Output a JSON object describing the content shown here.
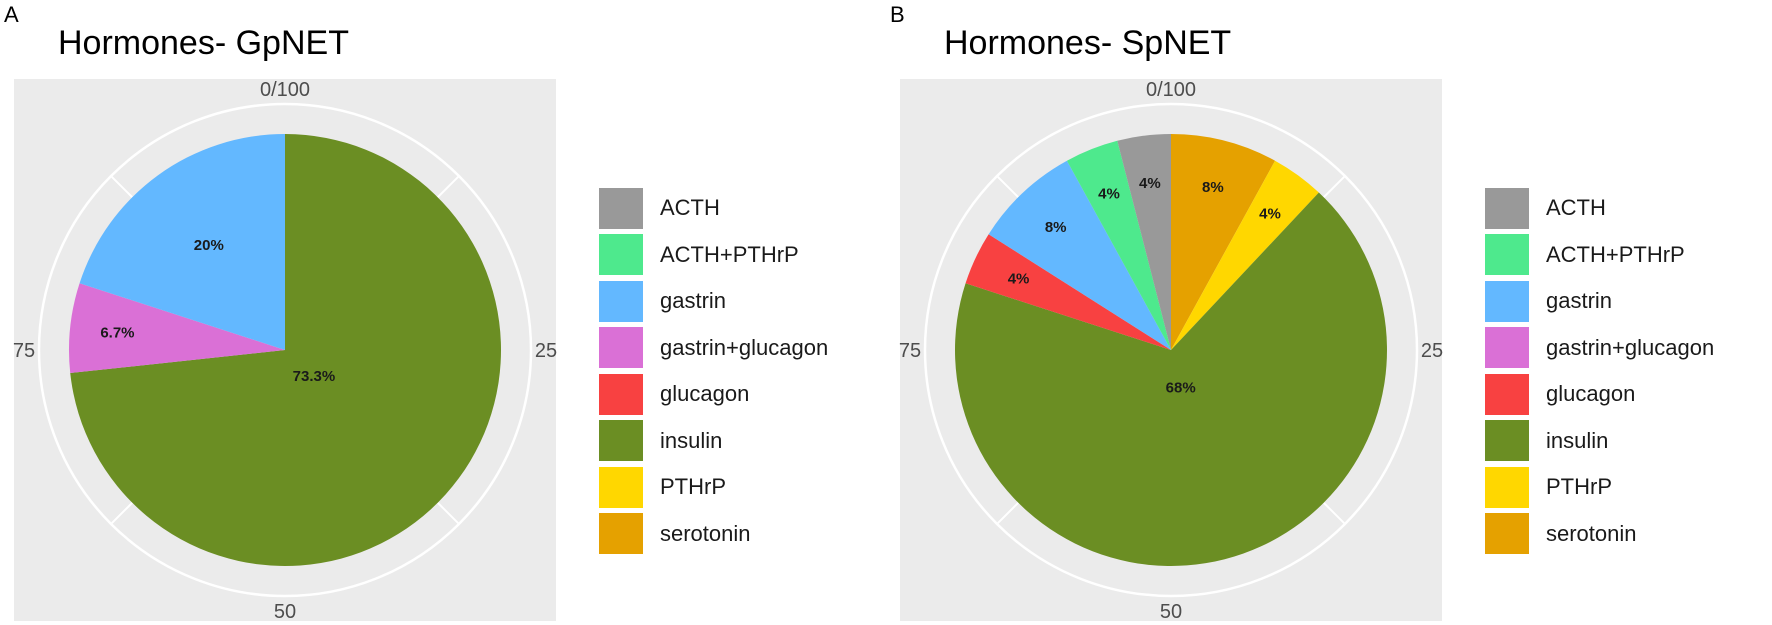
{
  "chart_data": [
    {
      "type": "pie",
      "panel_label": "A",
      "title": "Hormones- GpNET",
      "axis_ticks": [
        "0/100",
        "25",
        "50",
        "75"
      ],
      "slices": [
        {
          "label": "insulin",
          "value": 73.3,
          "data_label": "73.3%",
          "color": "#6B8E23"
        },
        {
          "label": "gastrin+glucagon",
          "value": 6.7,
          "data_label": "6.7%",
          "color": "#DA70D6"
        },
        {
          "label": "gastrin",
          "value": 20,
          "data_label": "20%",
          "color": "#63B8FF"
        }
      ],
      "legend": [
        {
          "label": "ACTH",
          "color": "#999999"
        },
        {
          "label": "ACTH+PTHrP",
          "color": "#4EE98D"
        },
        {
          "label": "gastrin",
          "color": "#63B8FF"
        },
        {
          "label": "gastrin+glucagon",
          "color": "#DA70D6"
        },
        {
          "label": "glucagon",
          "color": "#F84141"
        },
        {
          "label": "insulin",
          "color": "#6B8E23"
        },
        {
          "label": "PTHrP",
          "color": "#FFD700"
        },
        {
          "label": "serotonin",
          "color": "#E5A100"
        }
      ],
      "legend_position": "right",
      "grid": true
    },
    {
      "type": "pie",
      "panel_label": "B",
      "title": "Hormones- SpNET",
      "axis_ticks": [
        "0/100",
        "25",
        "50",
        "75"
      ],
      "slices": [
        {
          "label": "serotonin",
          "value": 8,
          "data_label": "8%",
          "color": "#E5A100"
        },
        {
          "label": "PTHrP",
          "value": 4,
          "data_label": "4%",
          "color": "#FFD700"
        },
        {
          "label": "insulin",
          "value": 68,
          "data_label": "68%",
          "color": "#6B8E23"
        },
        {
          "label": "glucagon",
          "value": 4,
          "data_label": "4%",
          "color": "#F84141"
        },
        {
          "label": "gastrin",
          "value": 8,
          "data_label": "8%",
          "color": "#63B8FF"
        },
        {
          "label": "ACTH+PTHrP",
          "value": 4,
          "data_label": "4%",
          "color": "#4EE98D"
        },
        {
          "label": "ACTH",
          "value": 4,
          "data_label": "4%",
          "color": "#999999"
        }
      ],
      "legend": [
        {
          "label": "ACTH",
          "color": "#999999"
        },
        {
          "label": "ACTH+PTHrP",
          "color": "#4EE98D"
        },
        {
          "label": "gastrin",
          "color": "#63B8FF"
        },
        {
          "label": "gastrin+glucagon",
          "color": "#DA70D6"
        },
        {
          "label": "glucagon",
          "color": "#F84141"
        },
        {
          "label": "insulin",
          "color": "#6B8E23"
        },
        {
          "label": "PTHrP",
          "color": "#FFD700"
        },
        {
          "label": "serotonin",
          "color": "#E5A100"
        }
      ],
      "legend_position": "right",
      "grid": true
    }
  ]
}
